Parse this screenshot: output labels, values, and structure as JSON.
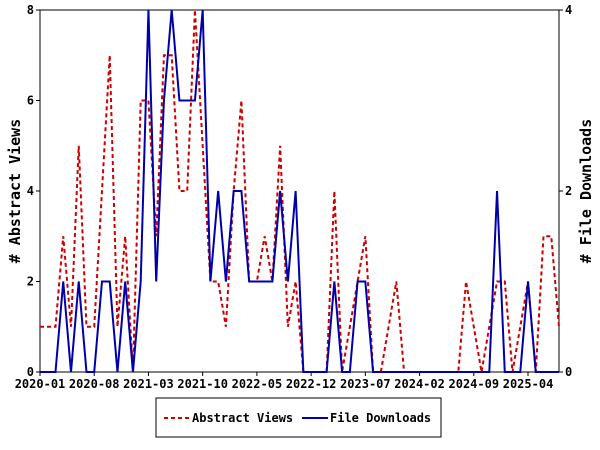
{
  "chart_data": {
    "type": "line",
    "y_label": "# Abstract Views",
    "y2_label": "# File Downloads",
    "categories": [
      "2020-01",
      null,
      null,
      null,
      null,
      null,
      null,
      "2020-08",
      null,
      null,
      null,
      null,
      null,
      null,
      "2021-03",
      null,
      null,
      null,
      null,
      null,
      null,
      "2021-10",
      null,
      null,
      null,
      null,
      null,
      null,
      "2022-05",
      null,
      null,
      null,
      null,
      null,
      null,
      "2022-12",
      null,
      null,
      null,
      null,
      null,
      null,
      "2023-07",
      null,
      null,
      null,
      null,
      null,
      null,
      "2024-02",
      null,
      null,
      null,
      null,
      null,
      null,
      "2024-09",
      null,
      null,
      null,
      null,
      null,
      null,
      "2025-04",
      null,
      null,
      null,
      null
    ],
    "series": [
      {
        "name": "Abstract Views",
        "color": "#cc0000",
        "dash": true,
        "axis": "y",
        "values": [
          1,
          1,
          1,
          3,
          1,
          5,
          1,
          1,
          4,
          7,
          1,
          3,
          0,
          6,
          6,
          3,
          7,
          7,
          4,
          4,
          8,
          5,
          2,
          2,
          1,
          4,
          6,
          2,
          2,
          3,
          2,
          5,
          1,
          2,
          0,
          0,
          0,
          0,
          4,
          0,
          1,
          2,
          3,
          0,
          0,
          1,
          2,
          0,
          0,
          0,
          0,
          0,
          0,
          0,
          0,
          2,
          1,
          0,
          1,
          2,
          2,
          0,
          1,
          2,
          0,
          3,
          3,
          1
        ]
      },
      {
        "name": "File Downloads",
        "color": "#0000aa",
        "dash": false,
        "axis": "y2",
        "values": [
          0,
          0,
          0,
          1,
          0,
          1,
          0,
          0,
          1,
          1,
          0,
          1,
          0,
          1,
          4,
          1,
          3,
          4,
          3,
          3,
          3,
          4,
          1,
          2,
          1,
          2,
          2,
          1,
          1,
          1,
          1,
          2,
          1,
          2,
          0,
          0,
          0,
          0,
          1,
          0,
          0,
          1,
          1,
          0,
          0,
          0,
          0,
          0,
          0,
          0,
          0,
          0,
          0,
          0,
          0,
          0,
          0,
          0,
          0,
          2,
          0,
          0,
          0,
          1,
          0,
          0,
          0,
          0
        ]
      }
    ],
    "ylim": [
      0,
      8
    ],
    "yticks": [
      0,
      2,
      4,
      6,
      8
    ],
    "y2lim": [
      0,
      4
    ],
    "y2ticks": [
      0,
      2,
      4
    ],
    "legend": "bottom"
  }
}
